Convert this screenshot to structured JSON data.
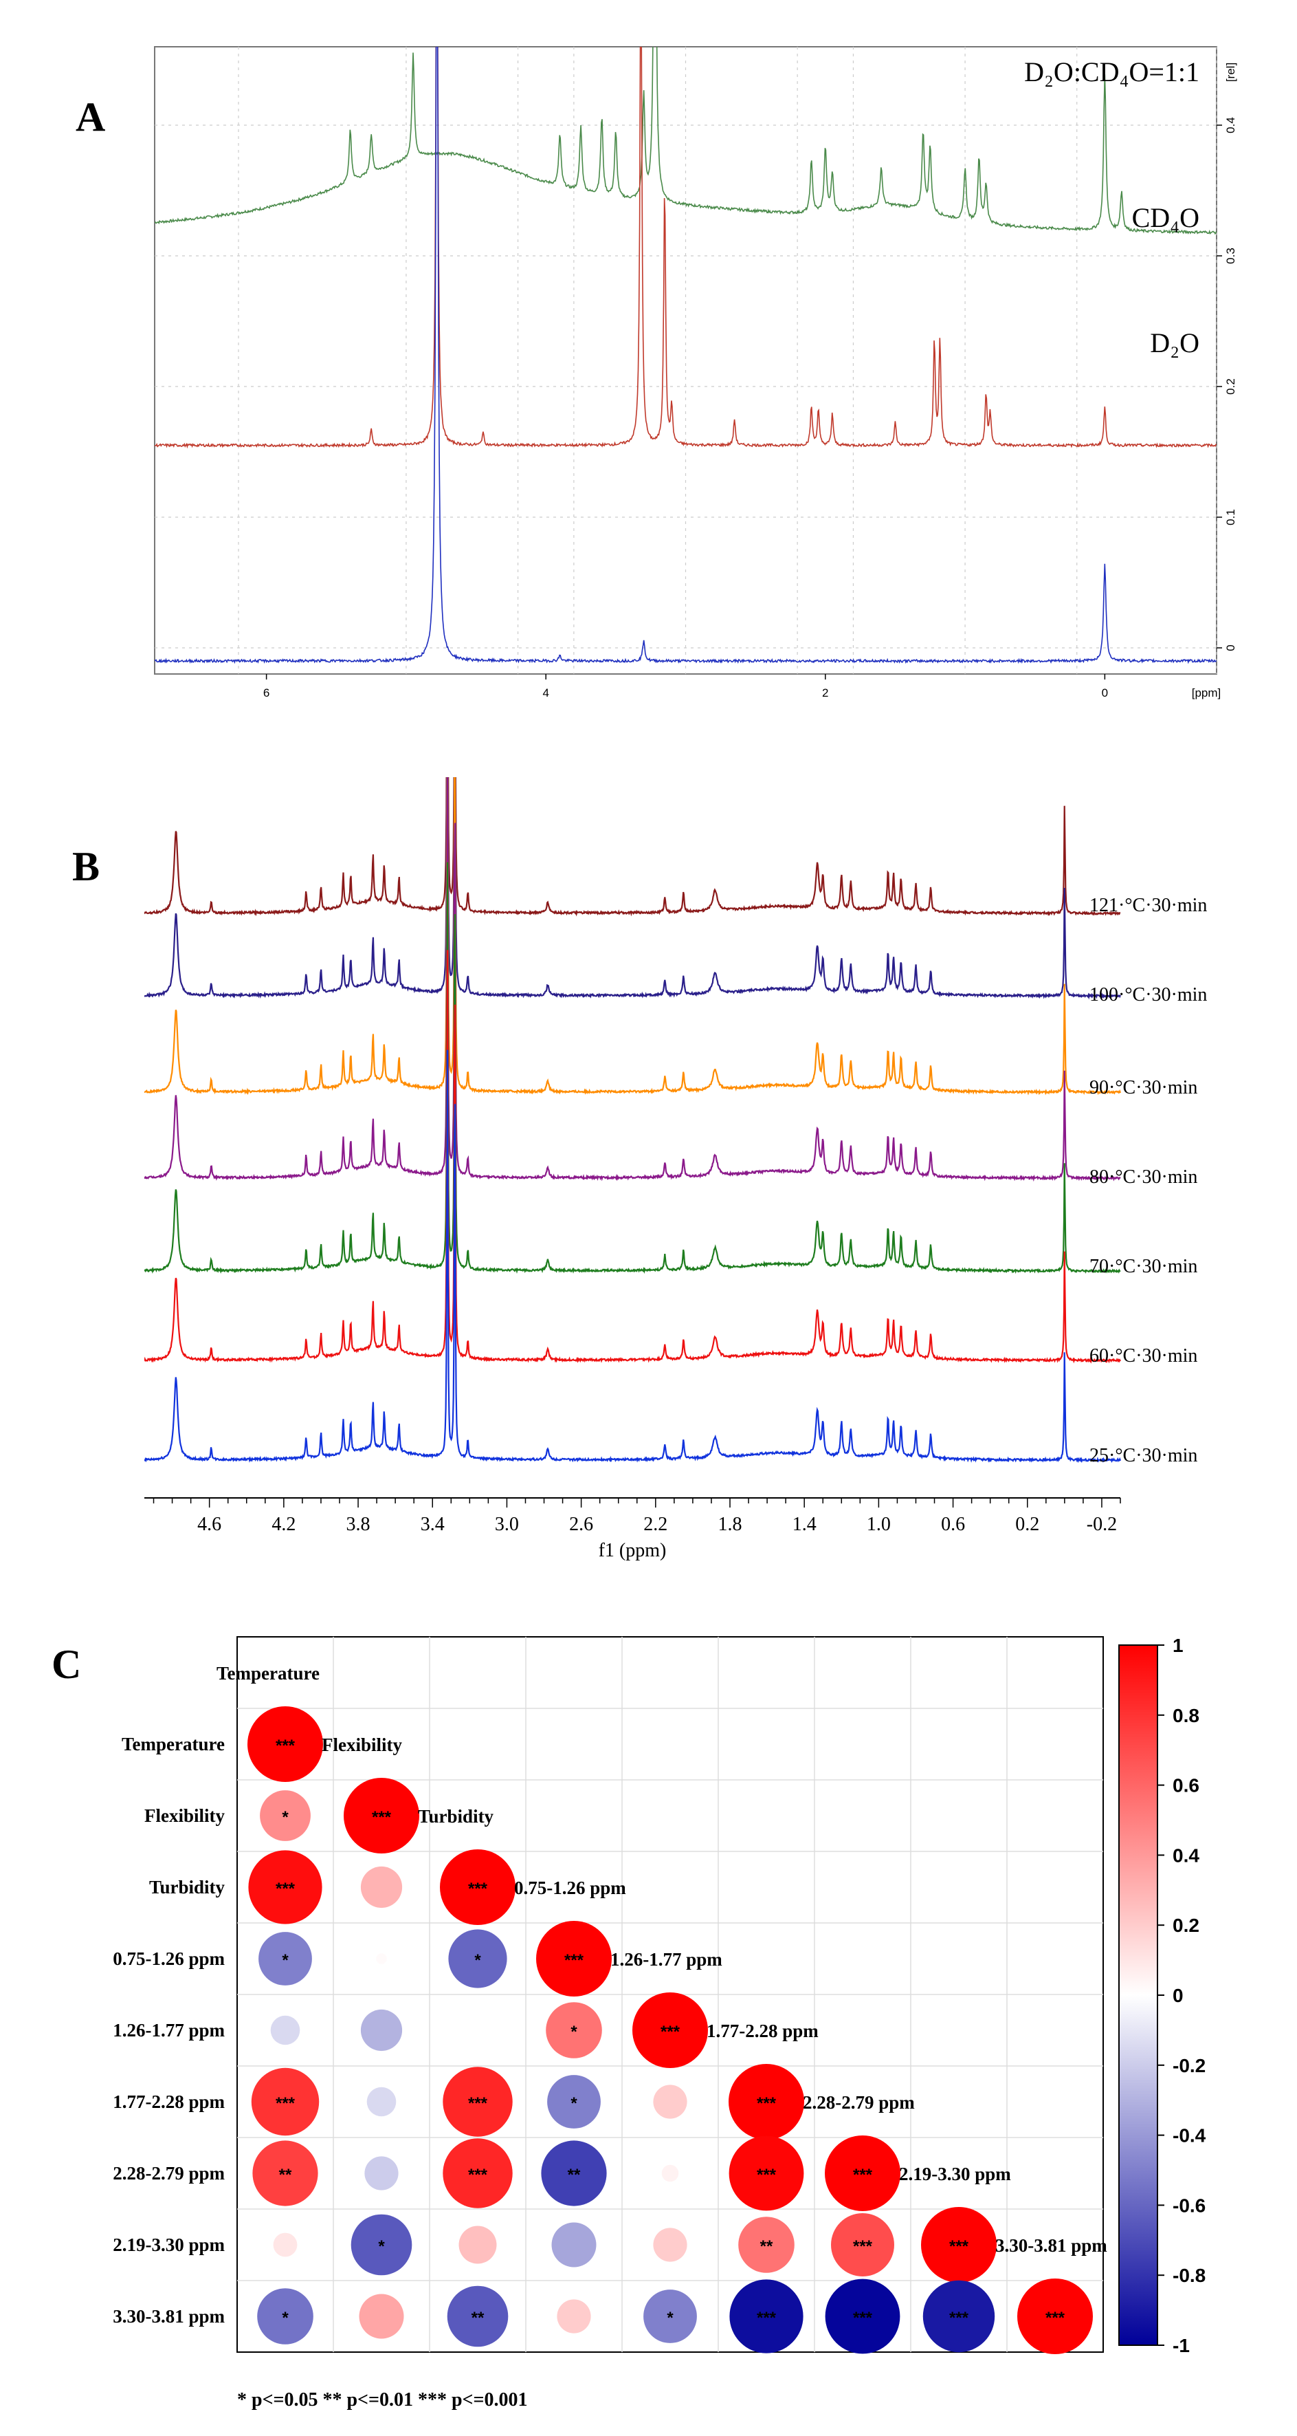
{
  "chart_data": [
    {
      "panel": "A",
      "type": "line",
      "title": "",
      "xlabel": "[ppm]",
      "ylabel": "[rel]",
      "xlim": [
        6.8,
        -0.8
      ],
      "ylim": [
        -0.02,
        0.46
      ],
      "x_ticks": [
        6,
        4,
        2,
        0
      ],
      "y_ticks": [
        0.0,
        0.1,
        0.2,
        0.3,
        0.4
      ],
      "series": [
        {
          "name": "D₂O:CD₄O=1:1",
          "color": "#4a8a4a",
          "peaks": [
            5.4,
            5.25,
            4.95,
            3.9,
            3.75,
            3.6,
            3.5,
            3.3,
            3.22,
            2.1,
            2.0,
            1.95,
            1.6,
            1.3,
            1.25,
            1.0,
            0.9,
            0.85,
            0.0,
            -0.12
          ]
        },
        {
          "name": "CD₄O",
          "color": "#c0392b",
          "peaks": [
            5.25,
            4.78,
            4.45,
            3.32,
            3.15,
            3.1,
            2.65,
            2.1,
            2.05,
            1.95,
            1.5,
            1.22,
            1.18,
            0.85,
            0.82,
            0.0
          ]
        },
        {
          "name": "D₂O",
          "color": "#1f2fbf",
          "peaks": [
            4.78,
            3.9,
            3.3,
            0.0
          ]
        }
      ]
    },
    {
      "panel": "B",
      "type": "line",
      "title": "",
      "xlabel": "f1 (ppm)",
      "ylabel": "",
      "xlim": [
        4.95,
        -0.3
      ],
      "x_ticks": [
        4.6,
        4.2,
        3.8,
        3.4,
        3.0,
        2.6,
        2.2,
        1.8,
        1.4,
        1.0,
        0.6,
        0.2,
        -0.2
      ],
      "x_tick_labels": [
        "4.6",
        "4.2",
        "3.8",
        "3.4",
        "3.0",
        "2.6",
        "2.2",
        "1.8",
        "1.4",
        "1.0",
        "0.6",
        "0.2",
        "-0.2"
      ],
      "peaks": [
        4.78,
        4.59,
        4.08,
        4.0,
        3.88,
        3.84,
        3.72,
        3.66,
        3.58,
        3.32,
        3.28,
        3.21,
        2.78,
        2.15,
        2.05,
        1.88,
        1.33,
        1.3,
        1.2,
        1.15,
        0.95,
        0.92,
        0.88,
        0.8,
        0.72,
        0.0
      ],
      "series": [
        {
          "name": "121·°C·30·min",
          "color": "#8b1a1a"
        },
        {
          "name": "100·°C·30·min",
          "color": "#2a1f8a"
        },
        {
          "name": "90·°C·30·min",
          "color": "#ff8c00"
        },
        {
          "name": "80·°C·30·min",
          "color": "#8b1a8b"
        },
        {
          "name": "70·°C·30·min",
          "color": "#1e7d1e"
        },
        {
          "name": "60·°C·30·min",
          "color": "#ee1111"
        },
        {
          "name": "25·°C·30·min",
          "color": "#1133dd"
        }
      ]
    },
    {
      "panel": "C",
      "type": "heatmap",
      "title": "",
      "variables": [
        "Temperature",
        "Flexibility",
        "Turbidity",
        "0.75-1.26 ppm",
        "1.26-1.77 ppm",
        "1.77-2.28 ppm",
        "2.28-2.79 ppm",
        "2.19-3.30 ppm",
        "3.30-3.81 ppm"
      ],
      "lower_triangle": [
        [
          1
        ],
        [
          0.45,
          1
        ],
        [
          0.95,
          0.3,
          1
        ],
        [
          -0.5,
          0.02,
          -0.6,
          1
        ],
        [
          -0.15,
          -0.3,
          null,
          0.55,
          1
        ],
        [
          0.8,
          -0.15,
          0.85,
          -0.5,
          0.2,
          1
        ],
        [
          0.75,
          -0.2,
          0.85,
          -0.75,
          0.05,
          0.98,
          1
        ],
        [
          0.1,
          -0.65,
          0.25,
          -0.35,
          0.2,
          0.55,
          0.7,
          1
        ],
        [
          -0.55,
          0.35,
          -0.65,
          0.2,
          -0.5,
          -0.95,
          -0.98,
          -0.9,
          1
        ]
      ],
      "significance": [
        [
          "***"
        ],
        [
          "*",
          "***"
        ],
        [
          "***",
          "",
          "***"
        ],
        [
          "*",
          "",
          "*",
          "***"
        ],
        [
          "",
          "",
          "",
          "*",
          "***"
        ],
        [
          "***",
          "",
          "***",
          "*",
          "",
          "***"
        ],
        [
          "**",
          "",
          "***",
          "**",
          "",
          "***",
          "***"
        ],
        [
          "",
          "*",
          "",
          "",
          "",
          "**",
          "***",
          "***"
        ],
        [
          "*",
          "",
          "**",
          "",
          "*",
          "***",
          "***",
          "***",
          "***"
        ]
      ],
      "diagonal_labels": [
        "Temperature",
        "Flexibility",
        "Turbidity",
        "0.75-1.26 ppm",
        "1.26-1.77 ppm",
        "1.77-2.28 ppm",
        "2.28-2.79 ppm",
        "2.19-3.30 ppm",
        "3.30-3.81 ppm"
      ],
      "colorbar": {
        "min": -1,
        "max": 1,
        "ticks": [
          "1",
          "0.8",
          "0.6",
          "0.4",
          "0.2",
          "0",
          "-0.2",
          "-0.4",
          "-0.6",
          "-0.8",
          "-1"
        ],
        "colors": [
          "#000099",
          "#ffffff",
          "#ff0000"
        ]
      },
      "significance_note": "* p<=0.05  ** p<=0.01  *** p<=0.001"
    }
  ]
}
